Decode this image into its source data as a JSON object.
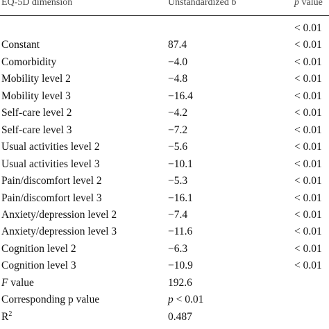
{
  "table": {
    "header": [
      "EQ-5D dimension",
      "Unstandardized b",
      {
        "italic": "p",
        "text": " value"
      }
    ],
    "rows": [
      {
        "p": "< 0.01"
      },
      {
        "dimension": "Constant",
        "b": "87.4",
        "p": "< 0.01"
      },
      {
        "dimension": "Comorbidity",
        "b": "−4.0",
        "p": "< 0.01"
      },
      {
        "dimension": "Mobility level 2",
        "b": "−4.8",
        "p": "< 0.01"
      },
      {
        "dimension": "Mobility level 3",
        "b": "−16.4",
        "p": "< 0.01"
      },
      {
        "dimension": "Self-care level 2",
        "b": "−4.2",
        "p": "< 0.01"
      },
      {
        "dimension": "Self-care level 3",
        "b": "−7.2",
        "p": "< 0.01"
      },
      {
        "dimension": "Usual activities level 2",
        "b": "−5.6",
        "p": "< 0.01"
      },
      {
        "dimension": "Usual activities level 3",
        "b": "−10.1",
        "p": "< 0.01"
      },
      {
        "dimension": "Pain/discomfort level 2",
        "b": "−5.3",
        "p": "< 0.01"
      },
      {
        "dimension": "Pain/discomfort level 3",
        "b": "−16.1",
        "p": "< 0.01"
      },
      {
        "dimension": "Anxiety/depression level 2",
        "b": "−7.4",
        "p": "< 0.01"
      },
      {
        "dimension": "Anxiety/depression level 3",
        "b": "−11.6",
        "p": "< 0.01"
      },
      {
        "dimension": "Cognition level 2",
        "b": "−6.3",
        "p": "< 0.01"
      },
      {
        "dimension": "Cognition level 3",
        "b": "−10.9",
        "p": "< 0.01"
      },
      {
        "dimension": {
          "italic": "F",
          "text": " value"
        },
        "b": "192.6"
      },
      {
        "dimension": "Corresponding p value",
        "b": {
          "italic": "p",
          "text": " < 0.01"
        }
      },
      {
        "dimension": {
          "text": "R",
          "sup": "2"
        },
        "b": "0.487"
      }
    ]
  }
}
